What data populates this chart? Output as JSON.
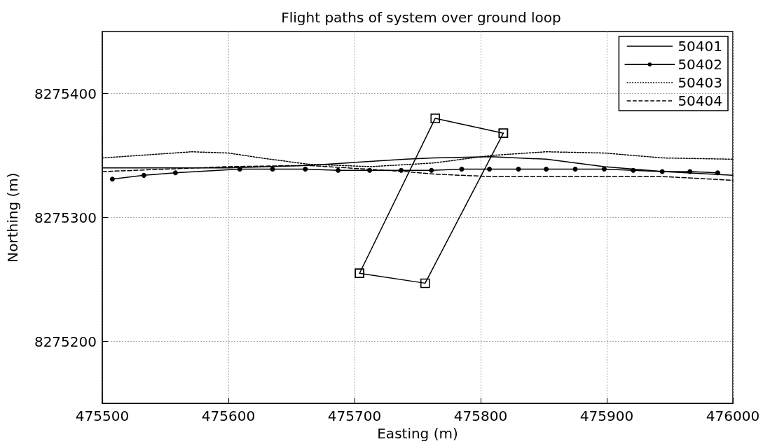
{
  "chart_data": {
    "type": "line",
    "title": "Flight paths of system over ground loop",
    "xlabel": "Easting (m)",
    "ylabel": "Northing (m)",
    "xlim": [
      475500,
      476000
    ],
    "xticks": [
      475500,
      475600,
      475700,
      475800,
      475900,
      476000
    ],
    "ylim": [
      8275150,
      8275450
    ],
    "yticks": [
      8275200,
      8275300,
      8275400
    ],
    "grid": true,
    "legend": "top right",
    "marker": "none",
    "line_style": "solid",
    "series": [
      {
        "name": "50401",
        "color": "#000000",
        "x": [
          475500,
          475600,
          475663,
          475741,
          475763,
          475808,
          475852,
          475898,
          475945,
          476000
        ],
        "values": [
          8275340,
          8275340,
          8275342,
          8275347,
          8275348,
          8275349,
          8275347,
          8275341,
          8275337,
          8275334
        ]
      },
      {
        "name": "50402",
        "color": "#000000",
        "marker": "circle",
        "x": [
          475508,
          475533,
          475558,
          475609,
          475635,
          475661,
          475687,
          475712,
          475737,
          475761,
          475785,
          475807,
          475830,
          475852,
          475875,
          475898,
          475921,
          475944,
          475966,
          475988
        ],
        "values": [
          8275331,
          8275334,
          8275336,
          8275339,
          8275339,
          8275339,
          8275338,
          8275338,
          8275338,
          8275338,
          8275339,
          8275339,
          8275339,
          8275339,
          8275339,
          8275339,
          8275338,
          8275337,
          8275337,
          8275336
        ]
      },
      {
        "name": "50403",
        "color": "#000000",
        "line_style": "dotted",
        "x": [
          475500,
          475571,
          475600,
          475626,
          475663,
          475713,
          475763,
          475808,
          475852,
          475898,
          475945,
          476000
        ],
        "values": [
          8275348,
          8275353,
          8275352,
          8275348,
          8275343,
          8275341,
          8275344,
          8275350,
          8275353,
          8275352,
          8275348,
          8275347
        ]
      },
      {
        "name": "50404",
        "color": "#000000",
        "line_style": "dashed",
        "x": [
          475500,
          475600,
          475663,
          475741,
          475763,
          475808,
          475898,
          475945,
          476000
        ],
        "values": [
          8275337,
          8275341,
          8275342,
          8275337,
          8275335,
          8275333,
          8275333,
          8275333,
          8275330
        ]
      },
      {
        "color": "#000000",
        "marker": "square",
        "x": [
          475704,
          475764,
          475818
        ],
        "values": [
          8275255,
          8275380,
          8275368
        ]
      },
      {
        "color": "#000000",
        "marker": "square",
        "x": [
          475704,
          475756,
          475818
        ],
        "values": [
          8275255,
          8275247,
          8275368
        ]
      }
    ]
  }
}
